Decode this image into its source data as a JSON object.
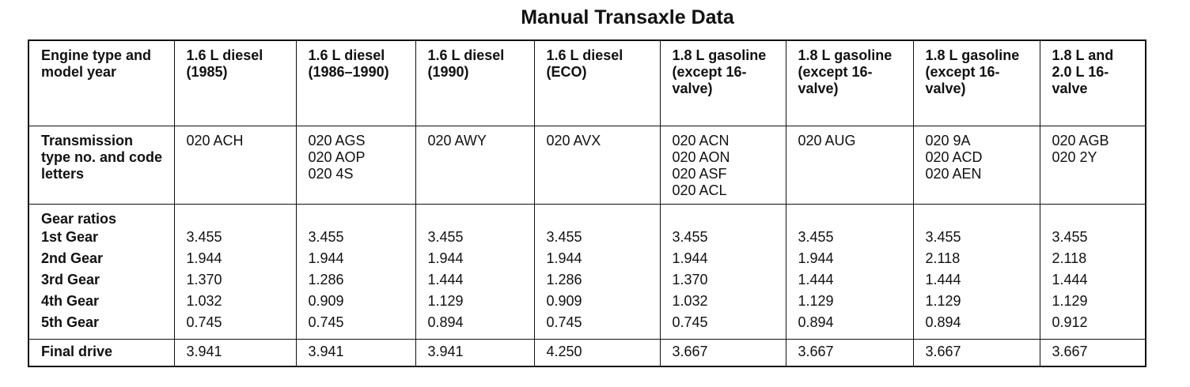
{
  "title": "Manual Transaxle Data",
  "table": {
    "header": [
      "Engine type and model year",
      "1.6 L diesel (1985)",
      "1.6 L diesel (1986–1990)",
      "1.6 L diesel (1990)",
      "1.6 L diesel (ECO)",
      "1.8 L gasoline (except 16-valve)",
      "1.8 L gasoline (except 16-valve)",
      "1.8 L gasoline (except 16-valve)",
      "1.8 L and 2.0 L 16-valve"
    ],
    "codes": {
      "label": "Transmission type no. and code letters",
      "values": [
        [
          "020 ACH"
        ],
        [
          "020 AGS",
          "020 AOP",
          "020 4S"
        ],
        [
          "020 AWY"
        ],
        [
          "020 AVX"
        ],
        [
          "020 ACN",
          "020 AON",
          "020 ASF",
          "020 ACL"
        ],
        [
          "020 AUG"
        ],
        [
          "020 9A",
          "020 ACD",
          "020 AEN"
        ],
        [
          "020 AGB",
          "020 2Y"
        ]
      ]
    },
    "gear_ratios": {
      "label": "Gear ratios",
      "rows": [
        {
          "label": "1st Gear",
          "values": [
            "3.455",
            "3.455",
            "3.455",
            "3.455",
            "3.455",
            "3.455",
            "3.455",
            "3.455"
          ]
        },
        {
          "label": "2nd Gear",
          "values": [
            "1.944",
            "1.944",
            "1.944",
            "1.944",
            "1.944",
            "1.944",
            "2.118",
            "2.118"
          ]
        },
        {
          "label": "3rd Gear",
          "values": [
            "1.370",
            "1.286",
            "1.444",
            "1.286",
            "1.370",
            "1.444",
            "1.444",
            "1.444"
          ]
        },
        {
          "label": "4th Gear",
          "values": [
            "1.032",
            "0.909",
            "1.129",
            "0.909",
            "1.032",
            "1.129",
            "1.129",
            "1.129"
          ]
        },
        {
          "label": "5th Gear",
          "values": [
            "0.745",
            "0.745",
            "0.894",
            "0.745",
            "0.745",
            "0.894",
            "0.894",
            "0.912"
          ]
        }
      ]
    },
    "final_drive": {
      "label": "Final drive",
      "values": [
        "3.941",
        "3.941",
        "3.941",
        "4.250",
        "3.667",
        "3.667",
        "3.667",
        "3.667"
      ]
    }
  }
}
